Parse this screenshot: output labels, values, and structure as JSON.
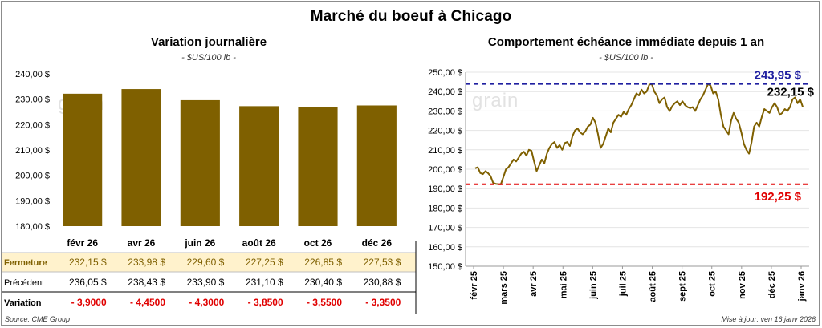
{
  "main_title": "Marché du boeuf à Chicago",
  "source": "Source: CME Group",
  "updated": "Mise à jour: ven 16 janv 2026",
  "watermark": "grain",
  "colors": {
    "bar": "#7f6000",
    "line": "#7f6000",
    "highlight_row": "#fff2cc",
    "high_line": "#1f1fa0",
    "low_line": "#e00000",
    "negative": "#e00000"
  },
  "chart_data": [
    {
      "type": "bar",
      "title": "Variation journalière",
      "unit": "- $US/100 lb -",
      "categories": [
        "févr 26",
        "avr 26",
        "juin 26",
        "août 26",
        "oct 26",
        "déc 26"
      ],
      "values": [
        232.15,
        233.98,
        229.6,
        227.25,
        226.85,
        227.53
      ],
      "ylim": [
        180,
        240
      ],
      "yticks": [
        "180,00 $",
        "190,00 $",
        "200,00 $",
        "210,00 $",
        "220,00 $",
        "230,00 $",
        "240,00 $"
      ],
      "table": {
        "rows": [
          {
            "label": "Fermeture",
            "cells": [
              "232,15  $",
              "233,98  $",
              "229,60  $",
              "227,25  $",
              "226,85  $",
              "227,53  $"
            ]
          },
          {
            "label": "Précédent",
            "cells": [
              "236,05  $",
              "238,43  $",
              "233,90  $",
              "231,10  $",
              "230,40  $",
              "230,88  $"
            ]
          },
          {
            "label": "Variation",
            "cells": [
              "- 3,9000",
              "- 4,4500",
              "- 4,3000",
              "- 3,8500",
              "- 3,5500",
              "- 3,3500"
            ]
          }
        ]
      }
    },
    {
      "type": "line",
      "title": "Comportement échéance immédiate depuis 1 an",
      "unit": "- $US/100 lb -",
      "ylim": [
        150,
        250
      ],
      "yticks": [
        "150,00 $",
        "160,00 $",
        "170,00 $",
        "180,00 $",
        "190,00 $",
        "200,00 $",
        "210,00 $",
        "220,00 $",
        "230,00 $",
        "240,00 $",
        "250,00 $"
      ],
      "x_labels": [
        "févr 25",
        "mars 25",
        "avr 25",
        "mai 25",
        "juin 25",
        "juil 25",
        "août 25",
        "sept 25",
        "oct 25",
        "nov 25",
        "déc 25",
        "janv 26"
      ],
      "high": 243.95,
      "high_label": "243,95 $",
      "low": 192.25,
      "low_label": "192,25 $",
      "last": 232.15,
      "last_label": "232,15 $",
      "series": [
        {
          "values": [
            200.5,
            201,
            198,
            197.5,
            199,
            198,
            196.5,
            193,
            192.5,
            192.3,
            192.25,
            196,
            200,
            201,
            203,
            205,
            204,
            206,
            208,
            209,
            207,
            210,
            209.5,
            204,
            199,
            202,
            205,
            203,
            208,
            211,
            213,
            214,
            211,
            212.5,
            210,
            213.5,
            214,
            212,
            217,
            220,
            221,
            219,
            218,
            219.5,
            222,
            223,
            226.5,
            224,
            218,
            211,
            213,
            217,
            221,
            219,
            224,
            226,
            228,
            227,
            229.5,
            228,
            231,
            233,
            236,
            239,
            238,
            241,
            239,
            240,
            243.5,
            243.95,
            240,
            238,
            234,
            236,
            237,
            232,
            230,
            232.5,
            234,
            235,
            233,
            235,
            233,
            232,
            231.5,
            232,
            230,
            233,
            236,
            238,
            241,
            243.95,
            243,
            239,
            240,
            236,
            228,
            222,
            220,
            218,
            225,
            229,
            226,
            224,
            219,
            213,
            210,
            208,
            214,
            222,
            224,
            222,
            227,
            231,
            230,
            229,
            232,
            234,
            232,
            228,
            229,
            231,
            230,
            232,
            236,
            237,
            234,
            236,
            232.15
          ]
        }
      ]
    }
  ]
}
